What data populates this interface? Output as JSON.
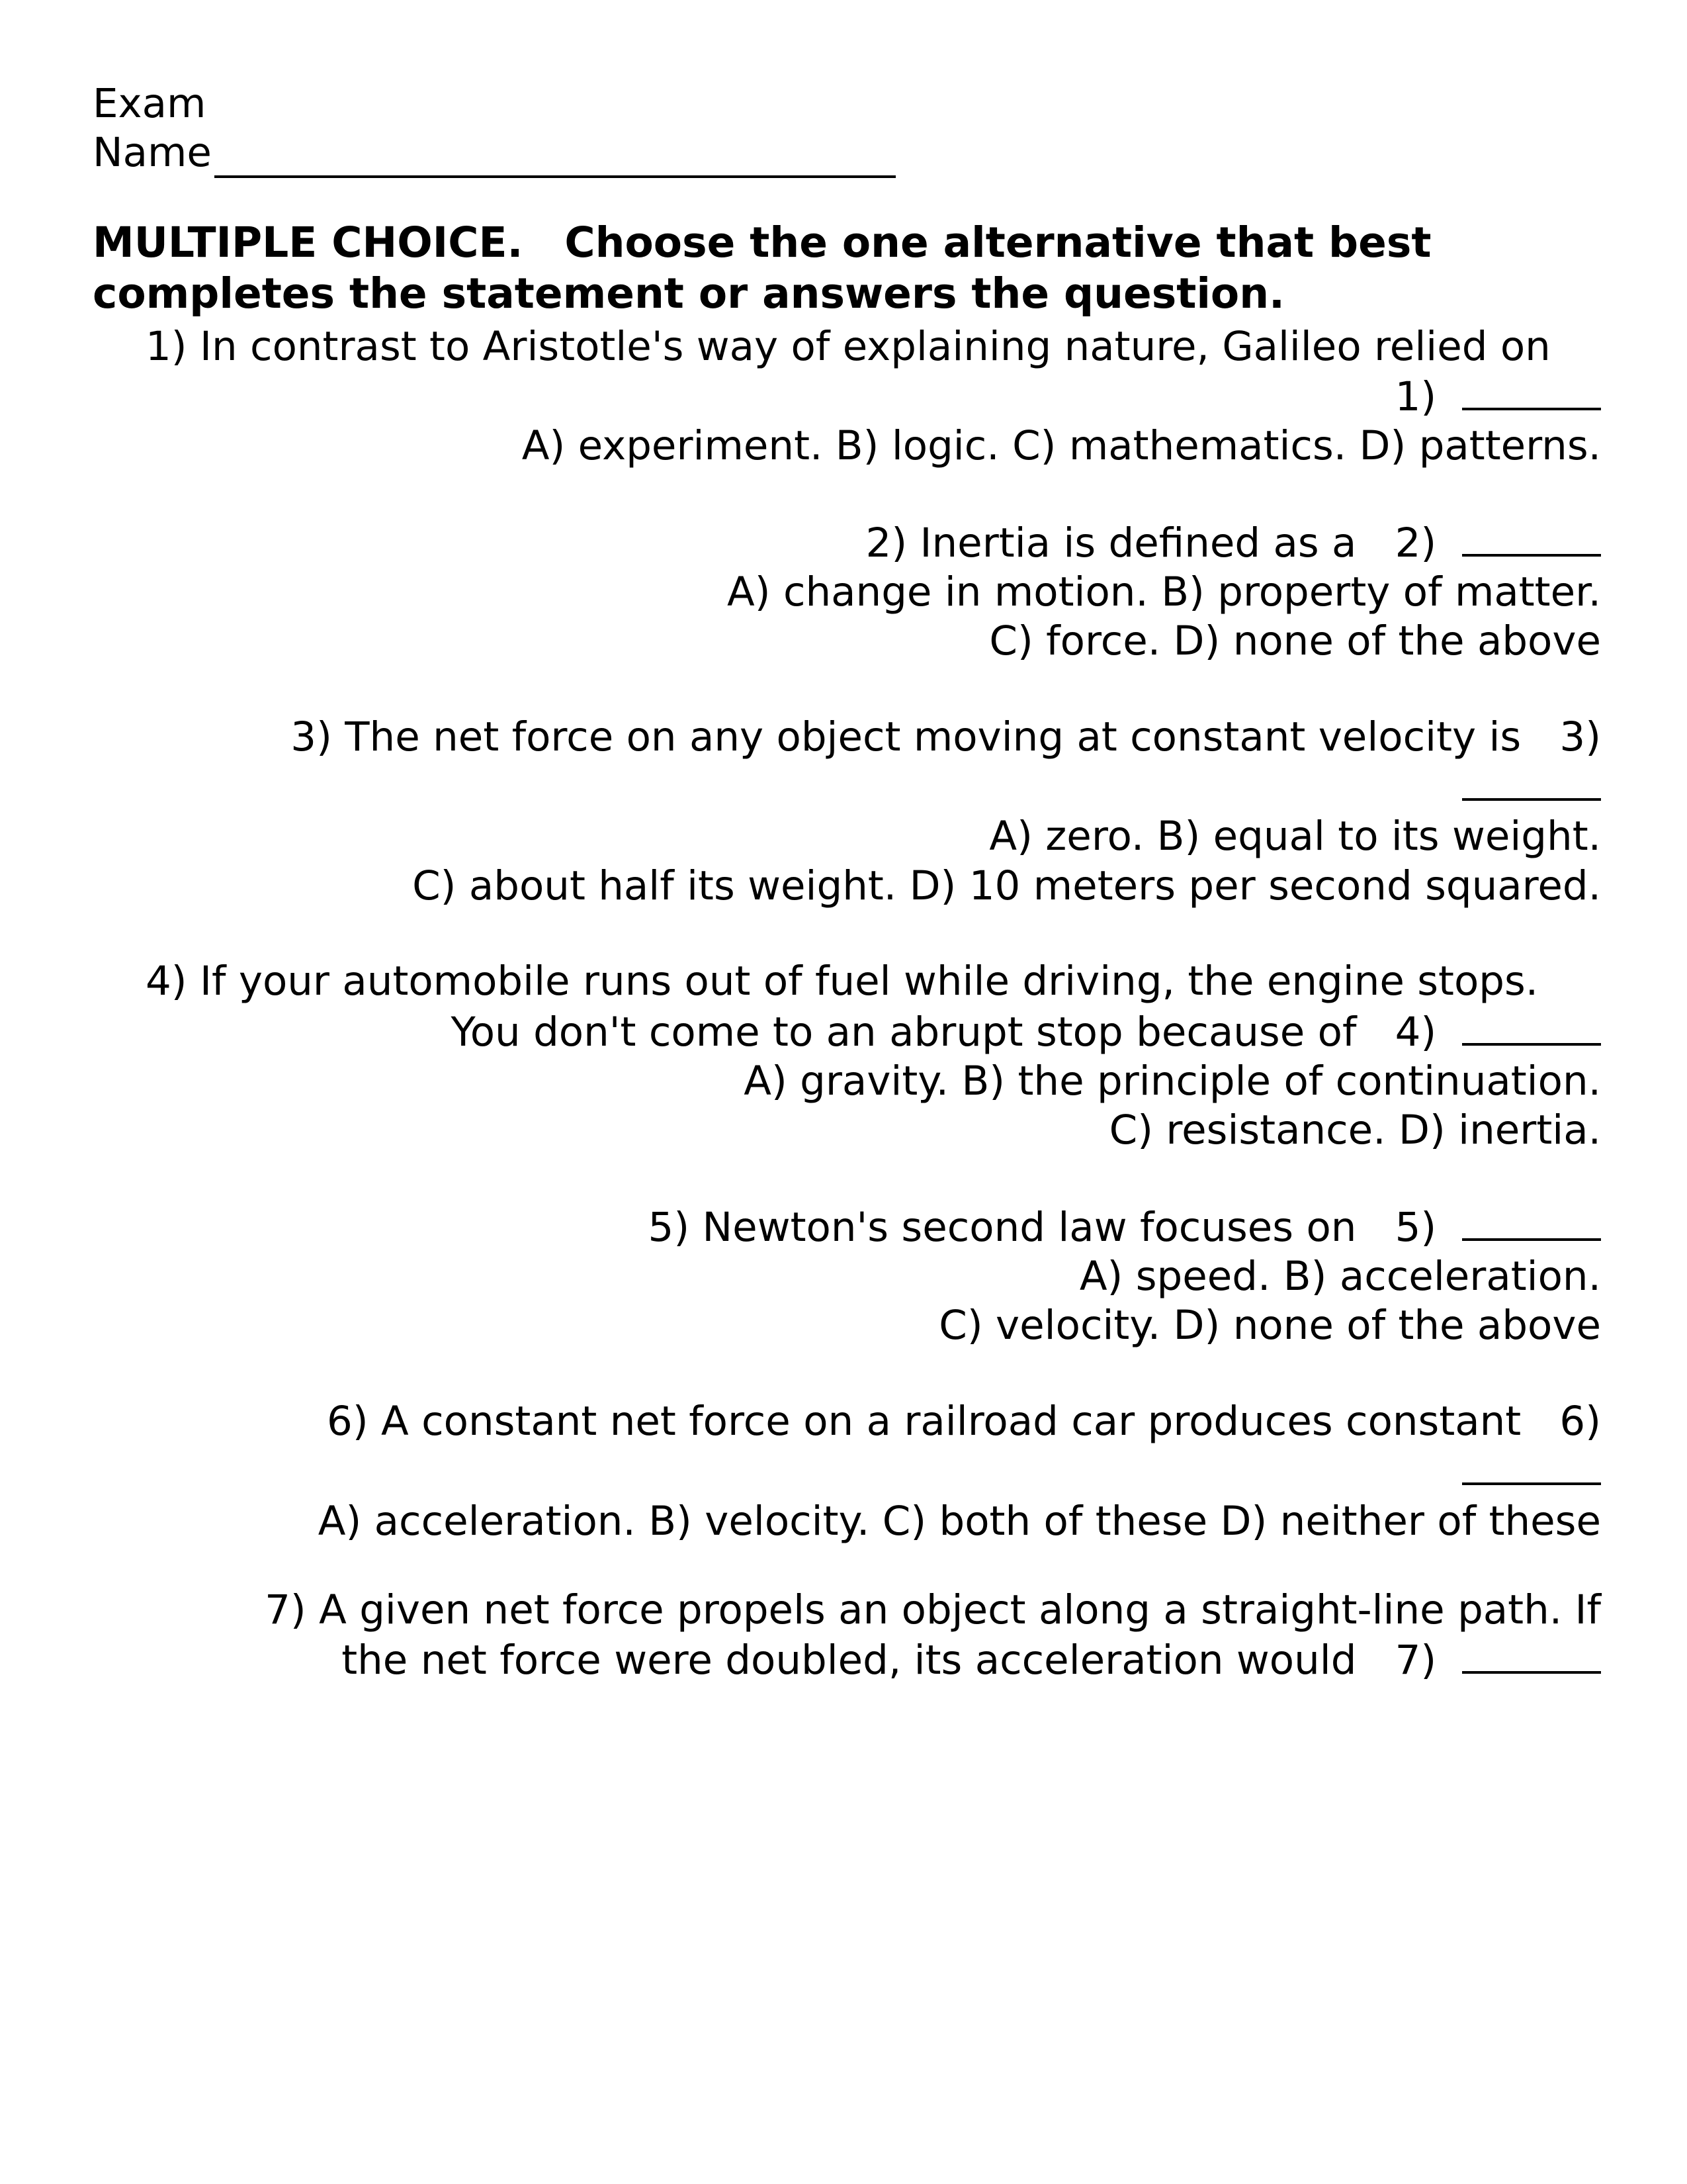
{
  "header": {
    "title": "Exam",
    "name_label": "Name"
  },
  "instructions": "MULTIPLE CHOICE. Choose the one alternative that best completes the statement or answers the question.",
  "questions": [
    {
      "num": "1)",
      "stem": "In contrast to Aristotle's way of explaining nature, Galileo relied on",
      "tail": "1)",
      "choices": "A) experiment. B) logic. C) mathematics. D) patterns."
    },
    {
      "num": "2)",
      "stem": "Inertia is defined as a",
      "tail": "2)",
      "choices_l1": "A) change in motion. B) property of matter.",
      "choices_l2": "C) force. D) none of the above"
    },
    {
      "num": "3)",
      "stem": "The net force on any object moving at constant velocity is",
      "tail": "3)",
      "choices_l1": "A) zero. B) equal to its weight.",
      "choices_l2": "C) about half its weight. D) 10 meters per second squared."
    },
    {
      "num": "4)",
      "stem_l1": "If your automobile runs out of fuel while driving, the engine stops.",
      "stem_l2": "You don't come to an abrupt stop because of",
      "tail": "4)",
      "choices_l1": "A) gravity. B) the principle of continuation.",
      "choices_l2": "C) resistance. D) inertia."
    },
    {
      "num": "5)",
      "stem": "Newton's second law focuses on",
      "tail": "5)",
      "choices_l1": "A) speed. B) acceleration.",
      "choices_l2": "C) velocity. D) none of the above"
    },
    {
      "num": "6)",
      "stem": "A constant net force on a railroad car produces constant",
      "tail": "6)",
      "choices": "A) acceleration. B) velocity. C) both of these D) neither of these"
    },
    {
      "num": "7)",
      "stem_l1": "A given net force propels an object along a straight-line path. If",
      "stem_l2": "the net force were doubled, its acceleration would",
      "tail": "7)"
    }
  ]
}
